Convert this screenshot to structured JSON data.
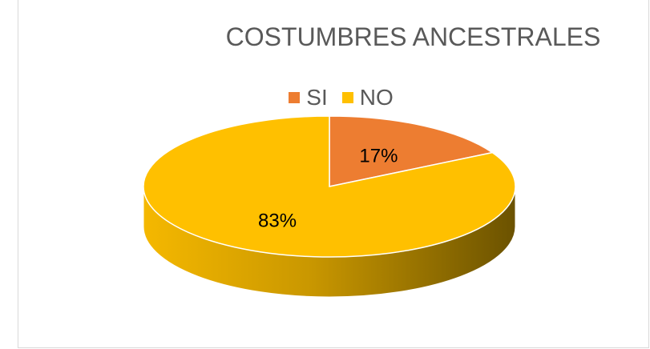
{
  "chart_data": {
    "type": "pie",
    "title": "COSTUMBRES ANCESTRALES",
    "legend_position": "top",
    "slices": [
      {
        "label": "SI",
        "value": 17,
        "display": "17%",
        "color": "#ED7D31"
      },
      {
        "label": "NO",
        "value": 83,
        "display": "83%",
        "color": "#FFC000"
      }
    ]
  }
}
